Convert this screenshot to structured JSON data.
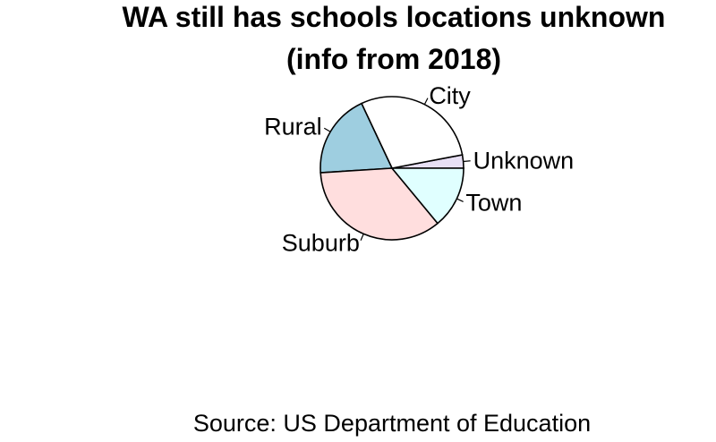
{
  "chart_data": {
    "type": "pie",
    "title_lines": [
      "WA still has schools locations unknown",
      "(info from 2018)"
    ],
    "caption": "Source: US Department of Education",
    "start_angle_deg": 0,
    "direction": "counterclockwise",
    "slices": [
      {
        "label": "Unknown",
        "value": 3,
        "color": "#E8E0F5"
      },
      {
        "label": "City",
        "value": 29,
        "color": "#FFFFFF"
      },
      {
        "label": "Rural",
        "value": 19,
        "color": "#9ECEE0"
      },
      {
        "label": "Suburb",
        "value": 35,
        "color": "#FFDEDE"
      },
      {
        "label": "Town",
        "value": 14,
        "color": "#E0FFFF"
      }
    ]
  }
}
